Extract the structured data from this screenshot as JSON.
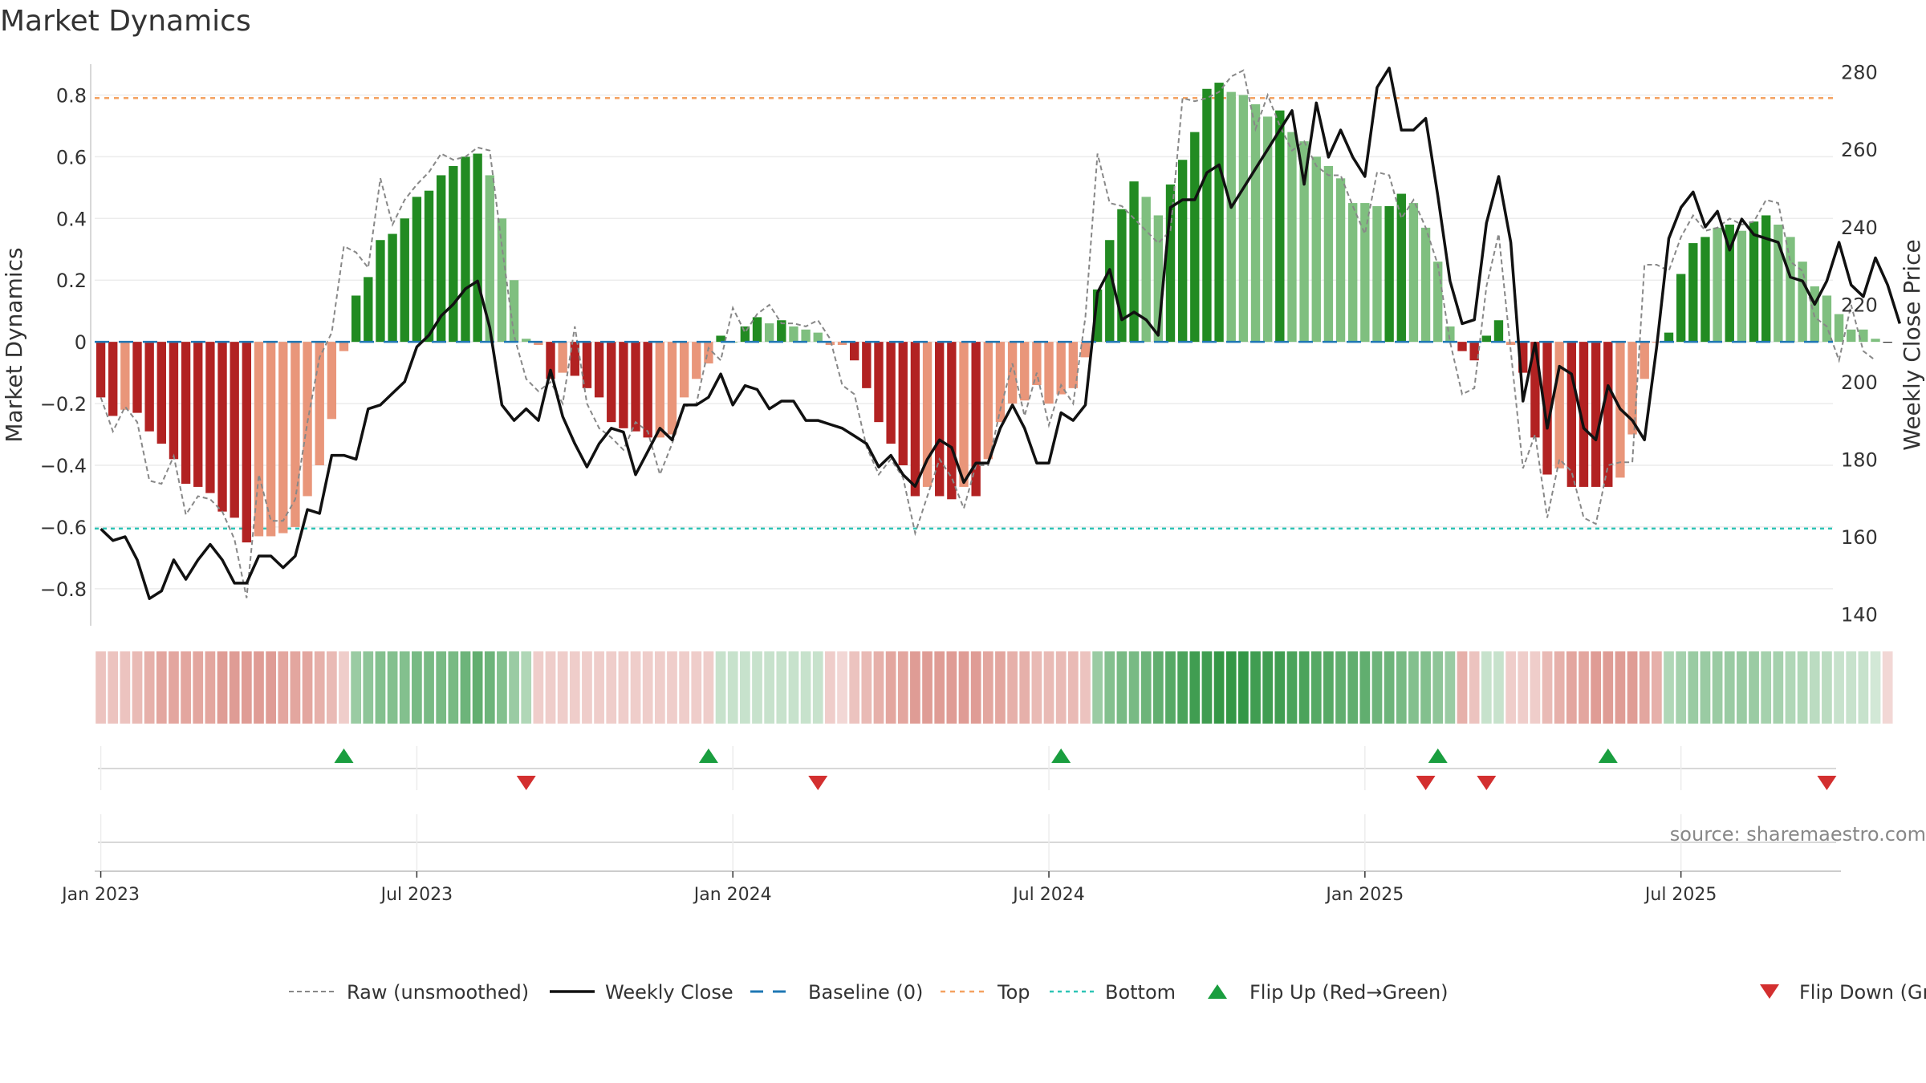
{
  "title": "Market Dynamics",
  "source_text": "source: sharemaestro.com",
  "chart_data": {
    "type": "bar",
    "ylabel_left": "Market Dynamics",
    "ylabel_right": "Weekly Close Price",
    "ylim_left": [
      -0.92,
      0.9
    ],
    "ylim_right": [
      137,
      282
    ],
    "left_ticks": [
      0.8,
      0.6,
      0.4,
      0.2,
      0,
      -0.2,
      -0.4,
      -0.6,
      -0.8
    ],
    "left_tick_labels": [
      "0.8",
      "0.6",
      "0.4",
      "0.2",
      "0",
      "−0.2",
      "−0.4",
      "−0.6",
      "−0.8"
    ],
    "right_ticks": [
      280,
      260,
      240,
      220,
      200,
      180,
      160,
      140
    ],
    "right_tick_labels": [
      "280",
      "260",
      "240",
      "220",
      "200",
      "180",
      "160",
      "140"
    ],
    "top_level": 0.79,
    "bottom_level": -0.605,
    "baseline": 0,
    "x_tick_labels": [
      {
        "label": "Jan 2023",
        "week": 1
      },
      {
        "label": "Jul 2023",
        "week": 27
      },
      {
        "label": "Jan 2024",
        "week": 53
      },
      {
        "label": "Jul 2024",
        "week": 79
      },
      {
        "label": "Jan 2025",
        "week": 105
      },
      {
        "label": "Jul 2025",
        "week": 131
      }
    ],
    "weeks": 143,
    "bars": [
      -0.18,
      -0.24,
      -0.22,
      -0.23,
      -0.29,
      -0.33,
      -0.38,
      -0.46,
      -0.47,
      -0.49,
      -0.55,
      -0.57,
      -0.65,
      -0.63,
      -0.63,
      -0.62,
      -0.6,
      -0.5,
      -0.4,
      -0.25,
      -0.03,
      0.15,
      0.21,
      0.33,
      0.35,
      0.4,
      0.47,
      0.49,
      0.54,
      0.57,
      0.6,
      0.61,
      0.54,
      0.4,
      0.2,
      0.01,
      -0.01,
      -0.12,
      -0.1,
      -0.11,
      -0.15,
      -0.18,
      -0.26,
      -0.28,
      -0.29,
      -0.31,
      -0.31,
      -0.3,
      -0.18,
      -0.12,
      -0.07,
      0.02,
      0.0,
      0.05,
      0.08,
      0.06,
      0.07,
      0.05,
      0.04,
      0.03,
      -0.01,
      -0.01,
      -0.06,
      -0.15,
      -0.26,
      -0.33,
      -0.4,
      -0.5,
      -0.47,
      -0.5,
      -0.51,
      -0.47,
      -0.5,
      -0.38,
      -0.26,
      -0.2,
      -0.19,
      -0.14,
      -0.2,
      -0.17,
      -0.15,
      -0.05,
      0.17,
      0.33,
      0.43,
      0.52,
      0.47,
      0.41,
      0.51,
      0.59,
      0.68,
      0.82,
      0.84,
      0.81,
      0.8,
      0.77,
      0.73,
      0.75,
      0.68,
      0.65,
      0.6,
      0.57,
      0.53,
      0.45,
      0.45,
      0.44,
      0.44,
      0.48,
      0.45,
      0.37,
      0.26,
      0.05,
      -0.03,
      -0.06,
      0.02,
      0.07,
      -0.01,
      -0.1,
      -0.31,
      -0.43,
      -0.41,
      -0.47,
      -0.47,
      -0.47,
      -0.47,
      -0.44,
      -0.3,
      -0.12,
      0.0,
      0.03,
      0.22,
      0.32,
      0.34,
      0.37,
      0.38,
      0.36,
      0.39,
      0.41,
      0.38,
      0.34,
      0.26,
      0.18,
      0.15,
      0.09,
      0.04,
      0.04,
      0.01,
      0.0
    ],
    "bar_colors": [
      "#b22222",
      "#b22222",
      "#e9967a",
      "#b22222",
      "#b22222",
      "#b22222",
      "#b22222",
      "#b22222",
      "#b22222",
      "#b22222",
      "#b22222",
      "#b22222",
      "#b22222",
      "#e9967a",
      "#e9967a",
      "#e9967a",
      "#e9967a",
      "#e9967a",
      "#e9967a",
      "#e9967a",
      "#e9967a",
      "#228b22",
      "#228b22",
      "#228b22",
      "#228b22",
      "#228b22",
      "#228b22",
      "#228b22",
      "#228b22",
      "#228b22",
      "#228b22",
      "#228b22",
      "#7fbf7f",
      "#7fbf7f",
      "#7fbf7f",
      "#7fbf7f",
      "#e9967a",
      "#b22222",
      "#e9967a",
      "#b22222",
      "#b22222",
      "#b22222",
      "#b22222",
      "#b22222",
      "#b22222",
      "#b22222",
      "#e9967a",
      "#e9967a",
      "#e9967a",
      "#e9967a",
      "#e9967a",
      "#228b22",
      "#7fbf7f",
      "#228b22",
      "#228b22",
      "#7fbf7f",
      "#228b22",
      "#7fbf7f",
      "#7fbf7f",
      "#7fbf7f",
      "#e9967a",
      "#e9967a",
      "#b22222",
      "#b22222",
      "#b22222",
      "#b22222",
      "#b22222",
      "#b22222",
      "#e9967a",
      "#b22222",
      "#b22222",
      "#e9967a",
      "#b22222",
      "#e9967a",
      "#e9967a",
      "#e9967a",
      "#e9967a",
      "#e9967a",
      "#e9967a",
      "#e9967a",
      "#e9967a",
      "#e9967a",
      "#228b22",
      "#228b22",
      "#228b22",
      "#228b22",
      "#7fbf7f",
      "#7fbf7f",
      "#228b22",
      "#228b22",
      "#228b22",
      "#228b22",
      "#228b22",
      "#7fbf7f",
      "#7fbf7f",
      "#7fbf7f",
      "#7fbf7f",
      "#228b22",
      "#7fbf7f",
      "#7fbf7f",
      "#7fbf7f",
      "#7fbf7f",
      "#7fbf7f",
      "#7fbf7f",
      "#7fbf7f",
      "#7fbf7f",
      "#228b22",
      "#228b22",
      "#7fbf7f",
      "#7fbf7f",
      "#7fbf7f",
      "#7fbf7f",
      "#b22222",
      "#b22222",
      "#228b22",
      "#228b22",
      "#e9967a",
      "#b22222",
      "#b22222",
      "#b22222",
      "#e9967a",
      "#b22222",
      "#b22222",
      "#b22222",
      "#b22222",
      "#e9967a",
      "#e9967a",
      "#e9967a",
      "#e9967a",
      "#228b22",
      "#228b22",
      "#228b22",
      "#228b22",
      "#7fbf7f",
      "#228b22",
      "#7fbf7f",
      "#228b22",
      "#228b22",
      "#7fbf7f",
      "#7fbf7f",
      "#7fbf7f",
      "#7fbf7f",
      "#7fbf7f",
      "#7fbf7f",
      "#7fbf7f",
      "#7fbf7f",
      "#7fbf7f"
    ],
    "raw": [
      -0.18,
      -0.29,
      -0.21,
      -0.26,
      -0.45,
      -0.46,
      -0.37,
      -0.56,
      -0.5,
      -0.51,
      -0.55,
      -0.64,
      -0.83,
      -0.43,
      -0.58,
      -0.58,
      -0.51,
      -0.26,
      -0.05,
      0.03,
      0.31,
      0.29,
      0.24,
      0.53,
      0.38,
      0.46,
      0.51,
      0.55,
      0.61,
      0.59,
      0.6,
      0.63,
      0.62,
      0.31,
      0.02,
      -0.12,
      -0.16,
      -0.13,
      -0.2,
      0.05,
      -0.2,
      -0.28,
      -0.31,
      -0.35,
      -0.26,
      -0.29,
      -0.43,
      -0.33,
      -0.21,
      -0.2,
      -0.02,
      -0.06,
      0.11,
      0.03,
      0.09,
      0.12,
      0.06,
      0.06,
      0.05,
      0.07,
      0.01,
      -0.14,
      -0.17,
      -0.34,
      -0.43,
      -0.38,
      -0.44,
      -0.62,
      -0.5,
      -0.38,
      -0.44,
      -0.54,
      -0.4,
      -0.4,
      -0.22,
      -0.07,
      -0.24,
      -0.1,
      -0.27,
      -0.14,
      -0.2,
      0.08,
      0.61,
      0.45,
      0.44,
      0.4,
      0.36,
      0.32,
      0.36,
      0.79,
      0.78,
      0.79,
      0.81,
      0.86,
      0.88,
      0.69,
      0.8,
      0.7,
      0.62,
      0.65,
      0.57,
      0.54,
      0.54,
      0.44,
      0.35,
      0.55,
      0.54,
      0.4,
      0.46,
      0.37,
      0.25,
      0.0,
      -0.17,
      -0.15,
      0.18,
      0.35,
      -0.03,
      -0.41,
      -0.3,
      -0.57,
      -0.38,
      -0.42,
      -0.57,
      -0.59,
      -0.4,
      -0.39,
      -0.39,
      0.25,
      0.25,
      0.23,
      0.34,
      0.41,
      0.36,
      0.37,
      0.4,
      0.38,
      0.39,
      0.46,
      0.45,
      0.26,
      0.23,
      0.08,
      0.05,
      -0.06,
      0.12,
      -0.03,
      -0.06
    ],
    "close": [
      162,
      159,
      160,
      154,
      144,
      146,
      154,
      149,
      154,
      158,
      154,
      148,
      148,
      155,
      155,
      152,
      155,
      167,
      166,
      181,
      181,
      180,
      193,
      194,
      197,
      200,
      209,
      212,
      217,
      220,
      224,
      226,
      214,
      194,
      190,
      193,
      190,
      203,
      191,
      184,
      178,
      184,
      188,
      187,
      176,
      182,
      188,
      185,
      194,
      194,
      196,
      202,
      194,
      199,
      198,
      193,
      195,
      195,
      190,
      190,
      189,
      188,
      186,
      184,
      178,
      181,
      176,
      173,
      180,
      185,
      183,
      174,
      179,
      179,
      188,
      194,
      188,
      179,
      179,
      192,
      190,
      194,
      223,
      229,
      216,
      218,
      216,
      212,
      245,
      247,
      247,
      254,
      256,
      245,
      250,
      255,
      260,
      265,
      270,
      251,
      272,
      258,
      265,
      258,
      253,
      276,
      281,
      265,
      265,
      268,
      248,
      226,
      215,
      216,
      241,
      253,
      236,
      195,
      210,
      188,
      204,
      202,
      188,
      185,
      199,
      193,
      190,
      185,
      209,
      237,
      245,
      249,
      240,
      244,
      234,
      242,
      238,
      237,
      236,
      227,
      226,
      220,
      226,
      236,
      225,
      222,
      232,
      225,
      215
    ],
    "heat": [
      0.3,
      0.3,
      0.3,
      0.35,
      0.4,
      0.45,
      0.45,
      0.45,
      0.45,
      0.45,
      0.5,
      0.5,
      0.5,
      0.5,
      0.5,
      0.45,
      0.45,
      0.45,
      0.4,
      0.35,
      0.25,
      0.45,
      0.5,
      0.55,
      0.55,
      0.55,
      0.6,
      0.6,
      0.6,
      0.6,
      0.65,
      0.7,
      0.65,
      0.55,
      0.45,
      0.35,
      0.25,
      0.25,
      0.25,
      0.25,
      0.25,
      0.25,
      0.25,
      0.25,
      0.25,
      0.25,
      0.25,
      0.25,
      0.25,
      0.25,
      0.25,
      0.25,
      0.25,
      0.25,
      0.25,
      0.25,
      0.25,
      0.25,
      0.25,
      0.25,
      0.25,
      0.2,
      0.3,
      0.35,
      0.4,
      0.45,
      0.45,
      0.5,
      0.5,
      0.5,
      0.5,
      0.5,
      0.5,
      0.45,
      0.45,
      0.4,
      0.4,
      0.35,
      0.35,
      0.35,
      0.35,
      0.3,
      0.45,
      0.55,
      0.6,
      0.6,
      0.65,
      0.7,
      0.75,
      0.8,
      0.85,
      0.85,
      0.9,
      0.9,
      0.9,
      0.85,
      0.85,
      0.85,
      0.8,
      0.8,
      0.75,
      0.75,
      0.7,
      0.7,
      0.7,
      0.65,
      0.65,
      0.6,
      0.55,
      0.55,
      0.5,
      0.45,
      0.4,
      0.3,
      0.25,
      0.25,
      0.25,
      0.25,
      0.25,
      0.35,
      0.4,
      0.45,
      0.45,
      0.5,
      0.5,
      0.5,
      0.5,
      0.45,
      0.4,
      0.35,
      0.4,
      0.45,
      0.45,
      0.45,
      0.45,
      0.45,
      0.45,
      0.4,
      0.4,
      0.35,
      0.35,
      0.3,
      0.3,
      0.25,
      0.25,
      0.25,
      0.2,
      0.2
    ],
    "heat_red_color": "#c0392b",
    "heat_green_color": "#1e8c32",
    "flip_up_weeks": [
      21,
      51,
      80,
      111,
      125
    ],
    "flip_down_weeks": [
      36,
      60,
      110,
      115,
      143
    ],
    "colors": {
      "strong_negative": "#b22222",
      "weak_negative": "#e9967a",
      "strong_positive": "#228b22",
      "weak_positive": "#7fbf7f",
      "raw_line": "#888888",
      "close_line": "#111111",
      "baseline": "#1f77b4",
      "top": "#f4a261",
      "bottom": "#2ec4b6",
      "flip_up": "#1a9e3f",
      "flip_down": "#d32f2f"
    },
    "legend": [
      {
        "key": "raw",
        "label": "Raw (unsmoothed)"
      },
      {
        "key": "close",
        "label": "Weekly Close"
      },
      {
        "key": "baseline",
        "label": "Baseline (0)"
      },
      {
        "key": "top",
        "label": "Top"
      },
      {
        "key": "bottom",
        "label": "Bottom"
      },
      {
        "key": "flip_up",
        "label": "Flip Up (Red→Green)"
      },
      {
        "key": "flip_down",
        "label": "Flip Down (Green→Red)"
      }
    ],
    "legend_placement": "bottom",
    "grid": true
  }
}
